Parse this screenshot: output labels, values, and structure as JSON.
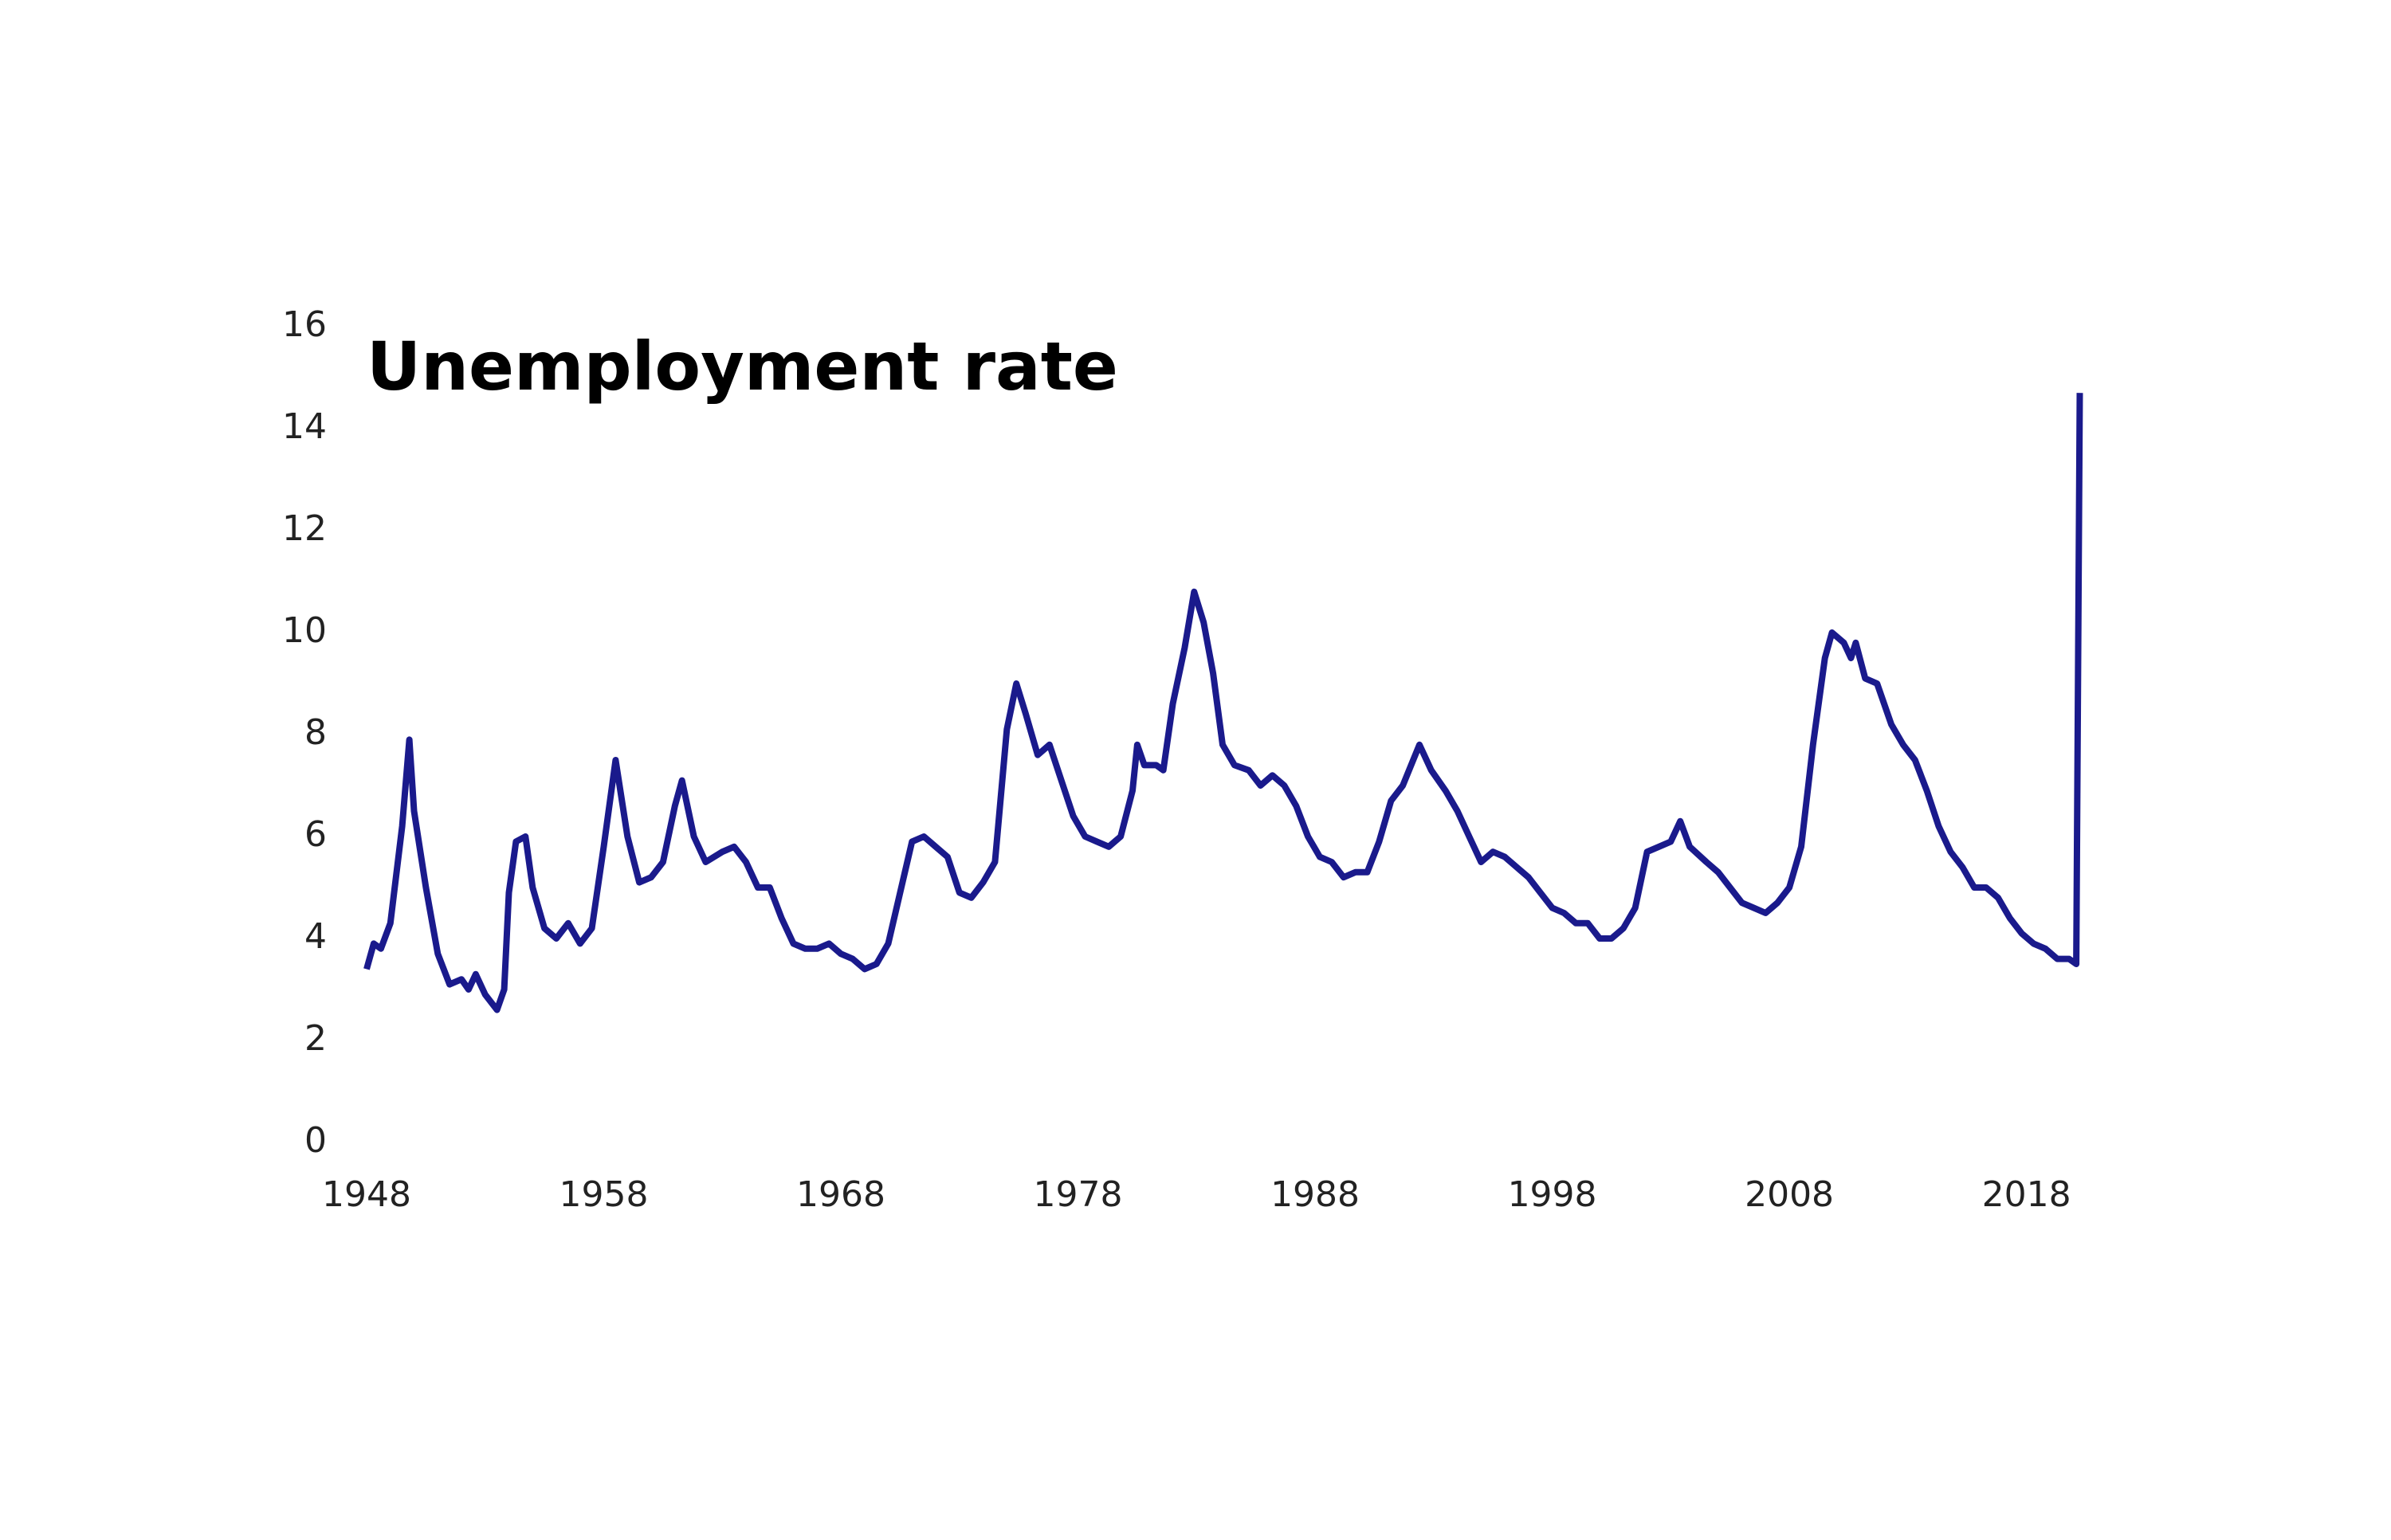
{
  "chart_data": {
    "type": "line",
    "title": "Unemployment rate",
    "x": [
      1948.0,
      1948.3,
      1948.6,
      1949.0,
      1949.5,
      1949.8,
      1950.0,
      1950.5,
      1951.0,
      1951.5,
      1952.0,
      1952.3,
      1952.6,
      1953.0,
      1953.5,
      1953.8,
      1954.0,
      1954.3,
      1954.7,
      1955.0,
      1955.5,
      1956.0,
      1956.5,
      1957.0,
      1957.5,
      1958.0,
      1958.5,
      1959.0,
      1959.5,
      1960.0,
      1960.5,
      1961.0,
      1961.3,
      1961.8,
      1962.3,
      1963.0,
      1963.5,
      1964.0,
      1964.5,
      1965.0,
      1965.5,
      1966.0,
      1966.5,
      1967.0,
      1967.5,
      1968.0,
      1968.5,
      1969.0,
      1969.5,
      1970.0,
      1970.5,
      1971.0,
      1971.5,
      1972.0,
      1972.5,
      1973.0,
      1973.5,
      1974.0,
      1974.5,
      1975.0,
      1975.4,
      1975.8,
      1976.3,
      1976.8,
      1977.3,
      1977.8,
      1978.3,
      1978.8,
      1979.3,
      1979.8,
      1980.3,
      1980.5,
      1980.8,
      1981.3,
      1981.6,
      1982.0,
      1982.5,
      1982.9,
      1983.3,
      1983.7,
      1984.1,
      1984.6,
      1985.2,
      1985.7,
      1986.2,
      1986.7,
      1987.2,
      1987.7,
      1988.2,
      1988.7,
      1989.2,
      1989.7,
      1990.2,
      1990.7,
      1991.2,
      1991.7,
      1992.4,
      1992.9,
      1993.5,
      1994.0,
      1994.5,
      1995.0,
      1995.5,
      1996.0,
      1996.5,
      1997.0,
      1997.5,
      1998.0,
      1998.5,
      1999.0,
      1999.5,
      2000.0,
      2000.5,
      2001.0,
      2001.5,
      2002.0,
      2002.5,
      2003.0,
      2003.4,
      2003.8,
      2004.5,
      2005.0,
      2005.5,
      2006.0,
      2006.5,
      2007.0,
      2007.5,
      2008.0,
      2008.5,
      2009.0,
      2009.5,
      2009.8,
      2010.3,
      2010.6,
      2010.8,
      2011.2,
      2011.7,
      2012.3,
      2012.8,
      2013.3,
      2013.8,
      2014.3,
      2014.8,
      2015.3,
      2015.8,
      2016.3,
      2016.8,
      2017.3,
      2017.8,
      2018.3,
      2018.8,
      2019.3,
      2019.8,
      2020.1,
      2020.25
    ],
    "values": [
      3.4,
      3.9,
      3.8,
      4.3,
      6.2,
      7.9,
      6.5,
      5.0,
      3.7,
      3.1,
      3.2,
      3.0,
      3.3,
      2.9,
      2.6,
      3.0,
      4.9,
      5.9,
      6.0,
      5.0,
      4.2,
      4.0,
      4.3,
      3.9,
      4.2,
      5.8,
      7.5,
      6.0,
      5.1,
      5.2,
      5.5,
      6.6,
      7.1,
      6.0,
      5.5,
      5.7,
      5.8,
      5.5,
      5.0,
      5.0,
      4.4,
      3.9,
      3.8,
      3.8,
      3.9,
      3.7,
      3.6,
      3.4,
      3.5,
      3.9,
      4.9,
      5.9,
      6.0,
      5.8,
      5.6,
      4.9,
      4.8,
      5.1,
      5.5,
      8.1,
      9.0,
      8.4,
      7.6,
      7.8,
      7.1,
      6.4,
      6.0,
      5.9,
      5.8,
      6.0,
      6.9,
      7.8,
      7.4,
      7.4,
      7.3,
      8.6,
      9.7,
      10.8,
      10.2,
      9.2,
      7.8,
      7.4,
      7.3,
      7.0,
      7.2,
      7.0,
      6.6,
      6.0,
      5.6,
      5.5,
      5.2,
      5.3,
      5.3,
      5.9,
      6.7,
      7.0,
      7.8,
      7.3,
      6.9,
      6.5,
      6.0,
      5.5,
      5.7,
      5.6,
      5.4,
      5.2,
      4.9,
      4.6,
      4.5,
      4.3,
      4.3,
      4.0,
      4.0,
      4.2,
      4.6,
      5.7,
      5.8,
      5.9,
      6.3,
      5.8,
      5.5,
      5.3,
      5.0,
      4.7,
      4.6,
      4.5,
      4.7,
      5.0,
      5.8,
      7.8,
      9.5,
      10.0,
      9.8,
      9.5,
      9.8,
      9.1,
      9.0,
      8.2,
      7.8,
      7.5,
      6.9,
      6.2,
      5.7,
      5.4,
      5.0,
      5.0,
      4.8,
      4.4,
      4.1,
      3.9,
      3.8,
      3.6,
      3.6,
      3.5,
      14.7
    ],
    "color": "#1a1a8c",
    "xlim": [
      1948,
      2020.4
    ],
    "xticks": [
      1948,
      1958,
      1968,
      1978,
      1988,
      1998,
      2008,
      2018
    ],
    "ylim": [
      0,
      16
    ],
    "yticks": [
      0,
      2,
      4,
      6,
      8,
      10,
      12,
      14,
      16
    ],
    "grid": false
  }
}
